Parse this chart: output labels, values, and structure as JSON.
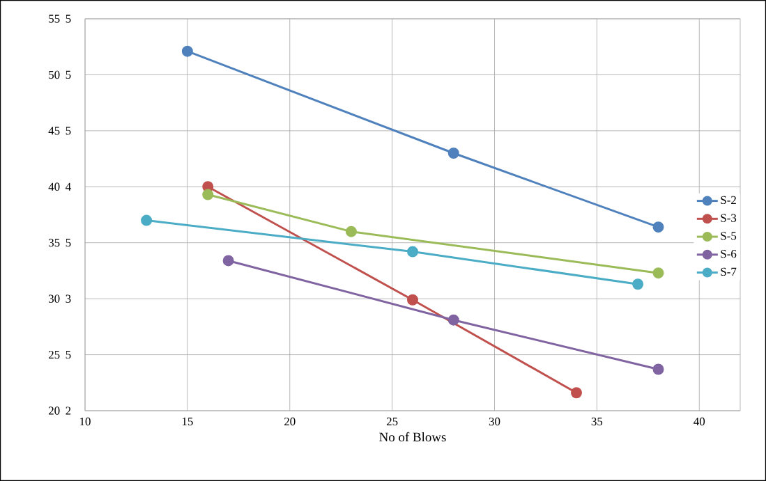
{
  "chart_data": {
    "type": "line",
    "xlabel": "No of Blows",
    "xlim": [
      10,
      42
    ],
    "xticks": [
      10,
      15,
      20,
      25,
      30,
      35,
      40
    ],
    "ylim": [
      20,
      55
    ],
    "yticks": [
      20,
      25,
      30,
      35,
      40,
      45,
      50,
      55
    ],
    "annotations": [
      "2",
      "5",
      "3",
      "5",
      "4",
      "5",
      "5",
      "5"
    ],
    "grid": true,
    "legend": "right",
    "marker": "circle",
    "line_style": "solid",
    "series": [
      {
        "name": "S-2",
        "color": "#4f81bd",
        "x": [
          15,
          28,
          38
        ],
        "values": [
          52.1,
          43.0,
          36.4
        ]
      },
      {
        "name": "S-3",
        "color": "#c0504d",
        "x": [
          16,
          26,
          34
        ],
        "values": [
          40.0,
          29.9,
          21.6
        ]
      },
      {
        "name": "S-5",
        "color": "#9bbb59",
        "x": [
          16,
          23,
          38
        ],
        "values": [
          39.3,
          36.0,
          32.3
        ]
      },
      {
        "name": "S-6",
        "color": "#8064a2",
        "x": [
          17,
          28,
          38
        ],
        "values": [
          33.4,
          28.1,
          23.7
        ]
      },
      {
        "name": "S-7",
        "color": "#4bacc6",
        "x": [
          13,
          26,
          37
        ],
        "values": [
          37.0,
          34.2,
          31.3
        ]
      }
    ]
  }
}
